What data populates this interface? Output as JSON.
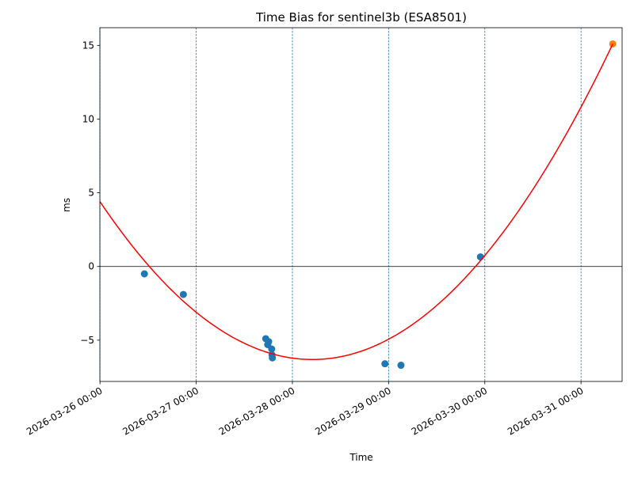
{
  "chart_data": {
    "type": "scatter",
    "title": "Time Bias for sentinel3b (ESA8501)",
    "xlabel": "Time",
    "ylabel": "ms",
    "x_axis": "datetime",
    "xlim": [
      "2026-03-25 23:58",
      "2026-03-31 10:15"
    ],
    "ylim": [
      -7.8,
      16.2
    ],
    "x_ticks": [
      "2026-03-26 00:00",
      "2026-03-27 00:00",
      "2026-03-28 00:00",
      "2026-03-29 00:00",
      "2026-03-30 00:00",
      "2026-03-31 00:00"
    ],
    "x_tick_labels": [
      "2026-03-26 00:00",
      "2026-03-27 00:00",
      "2026-03-28 00:00",
      "2026-03-29 00:00",
      "2026-03-30 00:00",
      "2026-03-31 00:00"
    ],
    "y_ticks": [
      -5,
      0,
      5,
      10,
      15
    ],
    "y_tick_labels": [
      "−5",
      "0",
      "5",
      "10",
      "15"
    ],
    "vertical_day_lines": true,
    "zero_line": true,
    "series": [
      {
        "kind": "scatter",
        "color": "#1f77b4",
        "points": [
          {
            "x": "2026-03-26 11:05",
            "y": -0.5
          },
          {
            "x": "2026-03-26 20:48",
            "y": -1.9
          },
          {
            "x": "2026-03-27 17:21",
            "y": -4.9
          },
          {
            "x": "2026-03-27 17:50",
            "y": -5.3
          },
          {
            "x": "2026-03-27 18:05",
            "y": -5.1
          },
          {
            "x": "2026-03-27 18:50",
            "y": -5.6
          },
          {
            "x": "2026-03-27 18:55",
            "y": -6.0
          },
          {
            "x": "2026-03-27 19:00",
            "y": -6.2
          },
          {
            "x": "2026-03-28 23:05",
            "y": -6.6
          },
          {
            "x": "2026-03-29 03:05",
            "y": -6.7
          },
          {
            "x": "2026-03-29 22:55",
            "y": 0.65
          }
        ]
      },
      {
        "kind": "scatter",
        "color": "#ff7f0e",
        "points": [
          {
            "x": "2026-03-31 07:55",
            "y": 15.1
          }
        ]
      },
      {
        "kind": "line",
        "color": "#ff0000",
        "fit": "quadratic",
        "points": [
          {
            "x": "2026-03-26 00:00",
            "y": 4.4
          },
          {
            "x": "2026-03-28 06:45",
            "y": -6.3
          },
          {
            "x": "2026-03-31 07:55",
            "y": 15.1
          }
        ]
      }
    ]
  }
}
